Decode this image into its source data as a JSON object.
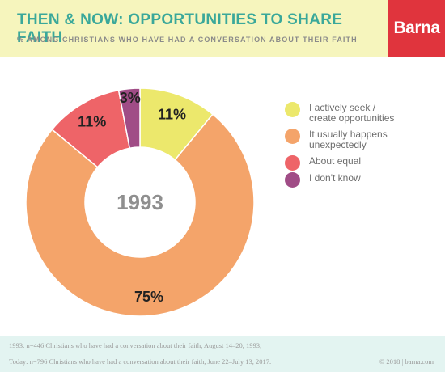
{
  "header": {
    "title": "THEN & NOW: OPPORTUNITIES TO SHARE FAITH",
    "subtitle": "% AMONG CHRISTIANS WHO HAVE HAD A CONVERSATION ABOUT THEIR FAITH"
  },
  "logo": {
    "text": "Barna"
  },
  "chart_data": {
    "type": "pie",
    "center_label": "1993",
    "categories": [
      "I actively seek / create opportunities",
      "It usually happens unexpectedly",
      "About equal",
      "I don't know"
    ],
    "values": [
      11,
      75,
      11,
      3
    ],
    "labels": [
      "11%",
      "75%",
      "11%",
      "3%"
    ],
    "colors": [
      "#ece86c",
      "#f4a46a",
      "#ee6468",
      "#a04c86"
    ],
    "legend_position": "right"
  },
  "legend": {
    "items": [
      {
        "label": "I actively seek /\ncreate opportunities",
        "color": "#ece86c"
      },
      {
        "label": "It usually happens\nunexpectedly",
        "color": "#f4a46a"
      },
      {
        "label": "About equal",
        "color": "#ee6468"
      },
      {
        "label": "I don't know",
        "color": "#a04c86"
      }
    ]
  },
  "footer": {
    "note_1": "1993: n=446 Christians who have had a conversation about their faith, August 14–20, 1993;",
    "note_2": "Today: n=796 Christians who have had a conversation about their faith, June 22–July 13, 2017.",
    "credit": "© 2018 | barna.com"
  },
  "colors": {
    "header_bg": "#f6f5bd",
    "title": "#3aa89a",
    "logo_bg": "#e0343d",
    "footer_bg": "#e3f4f1"
  }
}
